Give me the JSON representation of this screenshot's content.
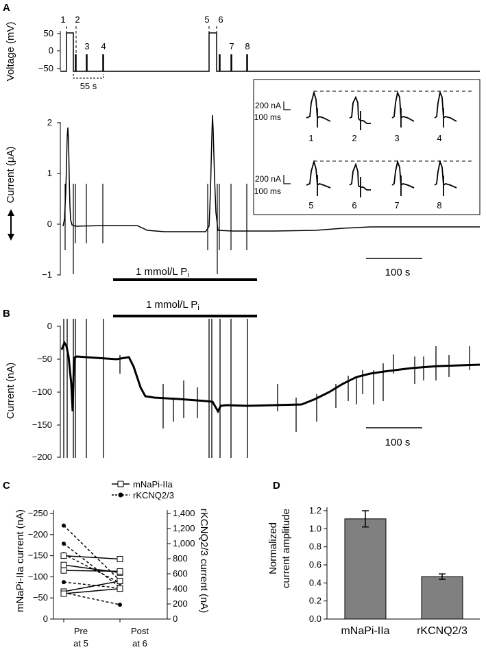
{
  "panel_a": {
    "letter": "A",
    "voltage_axis_label": "Voltage (mV)",
    "voltage_ticks": [
      "50",
      "0",
      "−50"
    ],
    "current_axis_label": "Current (μA)",
    "current_ticks": [
      "2",
      "1",
      "0",
      "−1"
    ],
    "pulse_numbers": [
      "1",
      "2",
      "3",
      "4",
      "5",
      "6",
      "7",
      "8"
    ],
    "interval_label": "55 s",
    "pi_bar_label": "1 mmol/L P",
    "pi_subscript": "i",
    "scale_bar_label": "100 s",
    "inset": {
      "scale_current_top": "200 nA",
      "scale_time_top": "100 ms",
      "scale_current_bottom": "200 nA",
      "scale_time_bottom": "100 ms",
      "trace_numbers": [
        "1",
        "2",
        "3",
        "4",
        "5",
        "6",
        "7",
        "8"
      ]
    }
  },
  "panel_b": {
    "letter": "B",
    "pi_bar_label": "1 mmol/L P",
    "pi_subscript": "i",
    "current_axis_label": "Current (nA)",
    "current_ticks": [
      "0",
      "−50",
      "−100",
      "−150",
      "−200"
    ],
    "scale_bar_label": "100 s"
  },
  "panel_c": {
    "letter": "C",
    "left_axis_label": "mNaPi-IIa current (nA)",
    "left_ticks": [
      "−250",
      "−200",
      "−150",
      "−100",
      "−50",
      "0"
    ],
    "right_axis_label": "rKCNQ2/3 current (nA)",
    "right_ticks": [
      "1,400",
      "1,200",
      "1,000",
      "800",
      "600",
      "400",
      "200",
      "0"
    ],
    "legend_1": "mNaPi-IIa",
    "legend_2": "rKCNQ2/3",
    "x_label_1a": "Pre",
    "x_label_1b": "at 5",
    "x_label_2a": "Post",
    "x_label_2b": "at 6"
  },
  "panel_d": {
    "letter": "D",
    "y_axis_label_1": "Normalized",
    "y_axis_label_2": "current amplitude",
    "ticks": [
      "1.2",
      "1.0",
      "0.8",
      "0.6",
      "0.4",
      "0.2",
      "0.0"
    ]
  },
  "chart_data": [
    {
      "type": "line",
      "panel": "C",
      "categories": [
        "Pre at 5",
        "Post at 6"
      ],
      "series": [
        {
          "name": "mNaPi-IIa",
          "axis": "left",
          "pairs": [
            [
              -150,
              -142
            ],
            [
              -128,
              -110
            ],
            [
              -115,
              -113
            ],
            [
              -65,
              -90
            ],
            [
              -60,
              -72
            ]
          ]
        },
        {
          "name": "rKCNQ2/3",
          "axis": "right",
          "pairs": [
            [
              1240,
              510
            ],
            [
              1000,
              420
            ],
            [
              860,
              480
            ],
            [
              490,
              410
            ],
            [
              350,
              190
            ]
          ]
        }
      ],
      "left_ylim": [
        0,
        -250
      ],
      "right_ylim": [
        0,
        1400
      ]
    },
    {
      "type": "bar",
      "panel": "D",
      "categories": [
        "mNaPi-IIa",
        "rKCNQ2/3"
      ],
      "values": [
        1.11,
        0.47
      ],
      "errors": [
        0.09,
        0.03
      ],
      "ylim": [
        0,
        1.2
      ],
      "color": "#808080"
    }
  ]
}
